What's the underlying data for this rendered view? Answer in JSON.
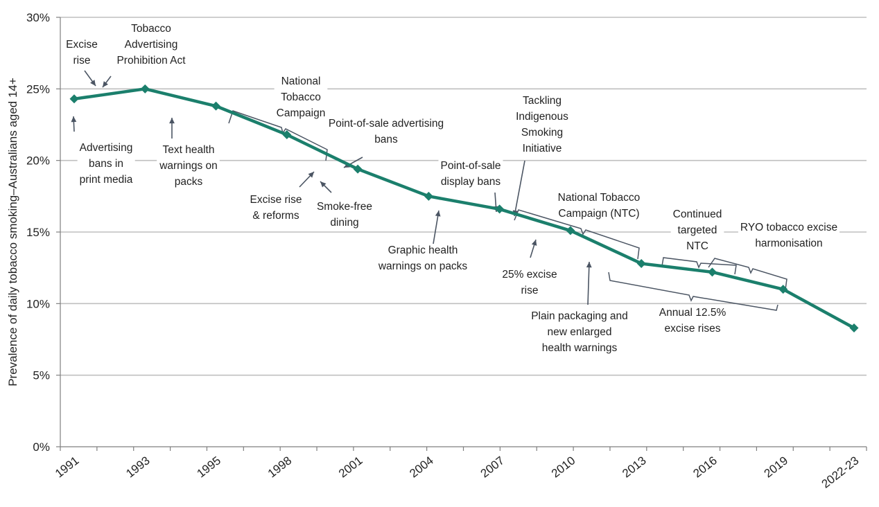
{
  "colors": {
    "series": "#1b7f6c",
    "grid": "#bfbfbf",
    "axis": "#7f7f7f",
    "annotation_stroke": "#4b5563"
  },
  "chart_data": {
    "type": "line",
    "ylabel": "Prevalence of daily tobacco smoking–Australians aged 14+",
    "ylim": [
      0,
      30
    ],
    "yticks": [
      0,
      5,
      10,
      15,
      20,
      25,
      30
    ],
    "ytick_labels": [
      "0%",
      "5%",
      "10%",
      "15%",
      "20%",
      "25%",
      "30%"
    ],
    "grid": true,
    "xlim": [
      1991,
      2024
    ],
    "x_tick_labels": [
      "1991",
      "1993",
      "1995",
      "1998",
      "2001",
      "2004",
      "2007",
      "2010",
      "2013",
      "2016",
      "2019",
      "2022-23"
    ],
    "series": [
      {
        "x": [
          1991,
          1993,
          1995,
          1998,
          2001,
          2004,
          2007,
          2010,
          2013,
          2016,
          2019,
          2022.5
        ],
        "values": [
          24.3,
          25.0,
          23.8,
          21.8,
          19.4,
          17.5,
          16.6,
          15.1,
          12.8,
          12.2,
          11.0,
          8.3
        ]
      }
    ],
    "annotations": [
      "Excise rise",
      "Tobacco Advertising Prohibition Act",
      "Advertising bans in print media",
      "Text health warnings on packs",
      "National Tobacco Campaign",
      "Point-of-sale advertising bans",
      "Excise rise & reforms",
      "Smoke-free dining",
      "Point-of-sale display bans",
      "Tackling Indigenous Smoking Initiative",
      "Graphic health warnings on packs",
      "National Tobacco Campaign (NTC)",
      "25% excise rise",
      "Plain packaging and new enlarged health warnings",
      "Continued targeted NTC",
      "RYO tobacco excise harmonisation",
      "Annual 12.5% excise rises"
    ]
  }
}
